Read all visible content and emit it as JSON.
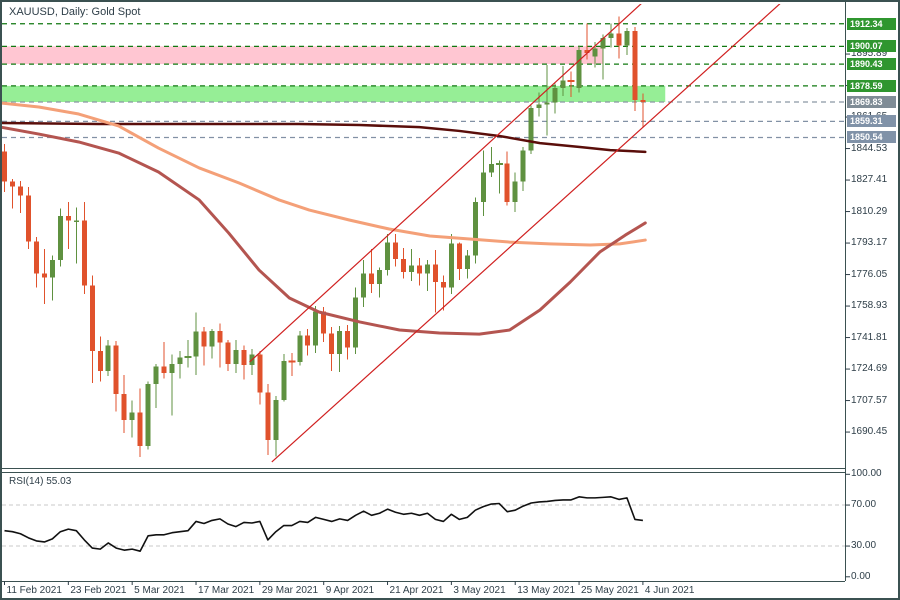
{
  "window": {
    "symbol_label": "XAUUSD, Daily:  Gold Spot"
  },
  "colors": {
    "bull": "#5f9140",
    "bear": "#e0522c",
    "ma200": "#5a0e0a",
    "ma100": "#f4a078",
    "ma50": "#b45550",
    "trendline": "#d02020",
    "zone_pink": "#ffc6d2",
    "zone_green": "#96ee96",
    "level_res": "#107810",
    "level_sup": "#8291a5",
    "level_cur": "#8a97a3",
    "badge_res": "#2f962f",
    "badge_sup": "#8092a8",
    "badge_cur": "#7f8c96",
    "rsi_line": "#111111",
    "rsi_grid": "#c9c9c9",
    "axis_text": "#2e3e48",
    "panel_border": "#3b5151",
    "background": "#ffffff"
  },
  "chart_data": {
    "type": "candlestick",
    "symbol": "XAUUSD",
    "timeframe": "Daily",
    "title": "XAUUSD, Daily:  Gold Spot",
    "price_axis_ticks": [
      {
        "label": "1895.89",
        "price": 1895.89
      },
      {
        "label": "1878.77",
        "price": 1878.77
      },
      {
        "label": "1861.65",
        "price": 1861.65
      },
      {
        "label": "1844.53",
        "price": 1844.53
      },
      {
        "label": "1827.41",
        "price": 1827.41
      },
      {
        "label": "1810.29",
        "price": 1810.29
      },
      {
        "label": "1793.17",
        "price": 1793.17
      },
      {
        "label": "1776.05",
        "price": 1776.05
      },
      {
        "label": "1758.93",
        "price": 1758.93
      },
      {
        "label": "1741.81",
        "price": 1741.81
      },
      {
        "label": "1724.69",
        "price": 1724.69
      },
      {
        "label": "1707.57",
        "price": 1707.57
      },
      {
        "label": "1690.45",
        "price": 1690.45
      }
    ],
    "price_badges": [
      {
        "label": "1912.34",
        "price": 1912.34,
        "type": "res"
      },
      {
        "label": "1900.07",
        "price": 1900.07,
        "type": "res"
      },
      {
        "label": "1890.43",
        "price": 1890.43,
        "type": "res"
      },
      {
        "label": "1878.59",
        "price": 1878.59,
        "type": "res"
      },
      {
        "label": "1869.83",
        "price": 1869.83,
        "type": "cur"
      },
      {
        "label": "1859.31",
        "price": 1859.31,
        "type": "sup"
      },
      {
        "label": "1850.54",
        "price": 1850.54,
        "type": "sup"
      }
    ],
    "levels": [
      {
        "price": 1912.34,
        "style": "res"
      },
      {
        "price": 1900.07,
        "style": "res"
      },
      {
        "price": 1890.43,
        "style": "res"
      },
      {
        "price": 1878.59,
        "style": "res"
      },
      {
        "price": 1869.83,
        "style": "cur"
      },
      {
        "price": 1859.31,
        "style": "sup"
      },
      {
        "price": 1850.54,
        "style": "sup"
      }
    ],
    "zones": [
      {
        "price_from": 1890.43,
        "price_to": 1900.07,
        "i_from": -0.6,
        "i_to": 75.0,
        "color_key": "zone_pink"
      },
      {
        "price_from": 1869.83,
        "price_to": 1878.59,
        "i_from": -0.6,
        "i_to": 82.8,
        "color_key": "zone_green"
      }
    ],
    "date_ticks": [
      {
        "label": "11 Feb 2021",
        "index": 0
      },
      {
        "label": "23 Feb 2021",
        "index": 8
      },
      {
        "label": "5 Mar 2021",
        "index": 16
      },
      {
        "label": "17 Mar 2021",
        "index": 24
      },
      {
        "label": "29 Mar 2021",
        "index": 32
      },
      {
        "label": "9 Apr 2021",
        "index": 40
      },
      {
        "label": "21 Apr 2021",
        "index": 48
      },
      {
        "label": "3 May 2021",
        "index": 56
      },
      {
        "label": "13 May 2021",
        "index": 64
      },
      {
        "label": "25 May 2021",
        "index": 72
      },
      {
        "label": "4 Jun 2021",
        "index": 80
      }
    ],
    "candles": [
      [
        "2021-02-11",
        1843.0,
        1847.0,
        1821.0,
        1826.5
      ],
      [
        "2021-02-12",
        1826.5,
        1828.0,
        1812.0,
        1824.0
      ],
      [
        "2021-02-15",
        1824.0,
        1827.0,
        1809.5,
        1819.0
      ],
      [
        "2021-02-16",
        1819.0,
        1823.5,
        1790.0,
        1794.0
      ],
      [
        "2021-02-17",
        1794.0,
        1796.5,
        1769.0,
        1776.5
      ],
      [
        "2021-02-18",
        1776.5,
        1790.0,
        1760.0,
        1774.5
      ],
      [
        "2021-02-19",
        1774.5,
        1786.5,
        1762.0,
        1784.0
      ],
      [
        "2021-02-22",
        1784.0,
        1812.0,
        1780.5,
        1808.0
      ],
      [
        "2021-02-23",
        1808.0,
        1815.5,
        1790.0,
        1805.5
      ],
      [
        "2021-02-24",
        1804.5,
        1812.5,
        1782.0,
        1805.5
      ],
      [
        "2021-02-25",
        1805.5,
        1815.5,
        1765.5,
        1770.0
      ],
      [
        "2021-02-26",
        1770.0,
        1775.5,
        1717.0,
        1734.5
      ],
      [
        "2021-03-01",
        1734.5,
        1742.5,
        1718.0,
        1723.5
      ],
      [
        "2021-03-02",
        1723.5,
        1740.5,
        1721.0,
        1737.5
      ],
      [
        "2021-03-03",
        1737.5,
        1740.0,
        1701.5,
        1711.0
      ],
      [
        "2021-03-04",
        1711.0,
        1721.5,
        1690.0,
        1697.0
      ],
      [
        "2021-03-05",
        1697.0,
        1707.5,
        1687.5,
        1701.0
      ],
      [
        "2021-03-08",
        1701.0,
        1714.0,
        1676.9,
        1683.0
      ],
      [
        "2021-03-09",
        1683.0,
        1718.0,
        1681.0,
        1716.5
      ],
      [
        "2021-03-10",
        1716.5,
        1727.5,
        1703.5,
        1726.0
      ],
      [
        "2021-03-11",
        1726.0,
        1739.5,
        1719.5,
        1722.5
      ],
      [
        "2021-03-12",
        1722.5,
        1732.5,
        1699.5,
        1727.5
      ],
      [
        "2021-03-15",
        1727.5,
        1734.5,
        1719.5,
        1731.0
      ],
      [
        "2021-03-16",
        1731.0,
        1740.5,
        1725.5,
        1731.5
      ],
      [
        "2021-03-17",
        1731.5,
        1755.5,
        1721.5,
        1745.0
      ],
      [
        "2021-03-18",
        1745.0,
        1747.5,
        1726.5,
        1737.0
      ],
      [
        "2021-03-19",
        1737.0,
        1746.5,
        1730.5,
        1745.5
      ],
      [
        "2021-03-22",
        1745.5,
        1749.5,
        1725.5,
        1739.0
      ],
      [
        "2021-03-23",
        1739.0,
        1740.5,
        1723.5,
        1727.5
      ],
      [
        "2021-03-24",
        1727.5,
        1740.5,
        1722.5,
        1735.0
      ],
      [
        "2021-03-25",
        1735.0,
        1737.5,
        1719.0,
        1727.0
      ],
      [
        "2021-03-26",
        1727.0,
        1735.5,
        1721.5,
        1732.5
      ],
      [
        "2021-03-29",
        1732.5,
        1734.5,
        1705.5,
        1712.0
      ],
      [
        "2021-03-30",
        1712.0,
        1716.5,
        1678.0,
        1686.0
      ],
      [
        "2021-03-31",
        1686.0,
        1710.0,
        1677.1,
        1708.0
      ],
      [
        "2021-04-01",
        1708.0,
        1733.0,
        1707.0,
        1729.0
      ],
      [
        "2021-04-05",
        1729.0,
        1733.5,
        1721.0,
        1728.5
      ],
      [
        "2021-04-06",
        1728.5,
        1745.5,
        1726.5,
        1743.0
      ],
      [
        "2021-04-07",
        1743.0,
        1746.5,
        1732.0,
        1737.5
      ],
      [
        "2021-04-08",
        1737.5,
        1759.0,
        1733.5,
        1756.0
      ],
      [
        "2021-04-09",
        1756.0,
        1758.5,
        1739.5,
        1744.0
      ],
      [
        "2021-04-12",
        1744.0,
        1747.5,
        1723.5,
        1733.0
      ],
      [
        "2021-04-13",
        1733.0,
        1748.0,
        1723.0,
        1745.5
      ],
      [
        "2021-04-14",
        1745.5,
        1748.5,
        1730.0,
        1736.5
      ],
      [
        "2021-04-15",
        1736.5,
        1769.0,
        1733.0,
        1763.5
      ],
      [
        "2021-04-16",
        1763.5,
        1784.0,
        1758.5,
        1776.5
      ],
      [
        "2021-04-19",
        1776.5,
        1790.0,
        1766.0,
        1771.0
      ],
      [
        "2021-04-20",
        1771.0,
        1780.0,
        1763.5,
        1778.5
      ],
      [
        "2021-04-21",
        1778.5,
        1798.0,
        1775.5,
        1793.5
      ],
      [
        "2021-04-22",
        1793.5,
        1798.0,
        1780.5,
        1784.5
      ],
      [
        "2021-04-23",
        1784.5,
        1790.5,
        1774.0,
        1777.5
      ],
      [
        "2021-04-26",
        1777.5,
        1790.0,
        1772.5,
        1781.0
      ],
      [
        "2021-04-27",
        1781.0,
        1785.0,
        1770.0,
        1776.5
      ],
      [
        "2021-04-28",
        1776.5,
        1784.0,
        1767.0,
        1781.5
      ],
      [
        "2021-04-29",
        1781.5,
        1789.5,
        1755.5,
        1772.0
      ],
      [
        "2021-04-30",
        1772.0,
        1775.5,
        1756.5,
        1769.0
      ],
      [
        "2021-05-03",
        1769.0,
        1798.0,
        1765.5,
        1793.0
      ],
      [
        "2021-05-04",
        1793.0,
        1793.5,
        1773.0,
        1779.0
      ],
      [
        "2021-05-05",
        1779.0,
        1789.5,
        1774.0,
        1786.5
      ],
      [
        "2021-05-06",
        1786.5,
        1818.0,
        1782.0,
        1815.5
      ],
      [
        "2021-05-07",
        1815.5,
        1843.5,
        1808.0,
        1831.5
      ],
      [
        "2021-05-10",
        1831.5,
        1845.5,
        1829.0,
        1836.0
      ],
      [
        "2021-05-11",
        1836.0,
        1838.0,
        1820.0,
        1836.5
      ],
      [
        "2021-05-12",
        1836.5,
        1843.0,
        1813.5,
        1815.5
      ],
      [
        "2021-05-13",
        1815.5,
        1831.5,
        1810.0,
        1826.5
      ],
      [
        "2021-05-14",
        1826.5,
        1845.5,
        1821.5,
        1843.5
      ],
      [
        "2021-05-17",
        1843.5,
        1868.0,
        1841.5,
        1866.5
      ],
      [
        "2021-05-18",
        1866.5,
        1875.0,
        1862.0,
        1868.5
      ],
      [
        "2021-05-19",
        1868.5,
        1890.0,
        1851.5,
        1869.5
      ],
      [
        "2021-05-20",
        1869.5,
        1880.0,
        1863.5,
        1877.5
      ],
      [
        "2021-05-21",
        1877.5,
        1889.5,
        1873.0,
        1881.5
      ],
      [
        "2021-05-24",
        1881.5,
        1886.5,
        1872.5,
        1881.0
      ],
      [
        "2021-05-25",
        1877.5,
        1900.5,
        1875.0,
        1898.0
      ],
      [
        "2021-05-26",
        1898.0,
        1912.5,
        1893.0,
        1896.5
      ],
      [
        "2021-05-27",
        1894.5,
        1902.5,
        1888.5,
        1899.0
      ],
      [
        "2021-05-28",
        1899.0,
        1906.5,
        1882.0,
        1904.5
      ],
      [
        "2021-05-31",
        1904.5,
        1912.6,
        1899.5,
        1907.0
      ],
      [
        "2021-06-01",
        1907.0,
        1916.4,
        1893.5,
        1900.5
      ],
      [
        "2021-06-02",
        1900.5,
        1910.0,
        1895.5,
        1908.5
      ],
      [
        "2021-06-03",
        1908.5,
        1910.5,
        1865.0,
        1871.0
      ],
      [
        "2021-06-04",
        1871.0,
        1874.5,
        1856.0,
        1869.83
      ]
    ],
    "moving_averages": [
      {
        "name": "MA200",
        "color_key": "ma200",
        "width": 2.5,
        "points": [
          [
            -0.5,
            1858.4
          ],
          [
            11.8,
            1857.9
          ],
          [
            24.4,
            1857.9
          ],
          [
            36.9,
            1857.9
          ],
          [
            44.5,
            1857.3
          ],
          [
            52,
            1856.2
          ],
          [
            57,
            1854.1
          ],
          [
            62.1,
            1851.3
          ],
          [
            67.1,
            1847.5
          ],
          [
            72.1,
            1845.4
          ],
          [
            75.9,
            1843.7
          ],
          [
            80.3,
            1842.7
          ]
        ]
      },
      {
        "name": "MA100",
        "color_key": "ma100",
        "width": 3,
        "points": [
          [
            -0.5,
            1869.3
          ],
          [
            4.3,
            1867.1
          ],
          [
            9.3,
            1863.3
          ],
          [
            14.3,
            1856.8
          ],
          [
            19.3,
            1844.8
          ],
          [
            24.4,
            1834.0
          ],
          [
            29.4,
            1825.8
          ],
          [
            34.4,
            1816.6
          ],
          [
            38.2,
            1811.1
          ],
          [
            43.2,
            1805.7
          ],
          [
            48.2,
            1800.8
          ],
          [
            53.3,
            1797.0
          ],
          [
            58.3,
            1795.4
          ],
          [
            63.3,
            1793.7
          ],
          [
            68.3,
            1792.7
          ],
          [
            73.4,
            1792.1
          ],
          [
            77.1,
            1792.7
          ],
          [
            80.3,
            1794.8
          ]
        ]
      },
      {
        "name": "MA50",
        "color_key": "ma50",
        "width": 3,
        "points": [
          [
            -0.5,
            1856.2
          ],
          [
            4.3,
            1852.4
          ],
          [
            9.3,
            1848.1
          ],
          [
            14.3,
            1842.1
          ],
          [
            19.3,
            1831.8
          ],
          [
            24.4,
            1816.6
          ],
          [
            28.1,
            1798.6
          ],
          [
            31.9,
            1778.5
          ],
          [
            35.7,
            1763.3
          ],
          [
            39.4,
            1755.7
          ],
          [
            44.5,
            1750.3
          ],
          [
            49.5,
            1745.9
          ],
          [
            54.5,
            1744.3
          ],
          [
            59.5,
            1743.7
          ],
          [
            63.3,
            1745.9
          ],
          [
            67.1,
            1756.8
          ],
          [
            70.9,
            1772.0
          ],
          [
            74.6,
            1788.3
          ],
          [
            77.8,
            1797.5
          ],
          [
            80.3,
            1804.1
          ]
        ]
      }
    ],
    "trendlines": [
      {
        "i1": 30.7,
        "p1": 1728.5,
        "i2": 80.3,
        "p2": 1925.3
      },
      {
        "i1": 33.5,
        "p1": 1674.2,
        "i2": 97.7,
        "p2": 1925.3
      }
    ],
    "rsi": {
      "label": "RSI(14) 55.03",
      "period": 14,
      "current": 55.03,
      "overbought": 70,
      "oversold": 30,
      "axis_ticks": [
        {
          "label": "100.00",
          "value": 100
        },
        {
          "label": "70.00",
          "value": 70
        },
        {
          "label": "30.00",
          "value": 30
        },
        {
          "label": "0.00",
          "value": 0
        }
      ],
      "values": [
        45,
        44,
        42,
        38,
        35,
        34,
        37,
        44,
        46.5,
        45,
        36,
        28,
        27,
        33,
        28,
        26,
        27,
        25,
        40,
        41,
        41,
        43,
        44,
        45,
        54,
        52,
        55,
        56.5,
        51.5,
        49,
        53,
        52.5,
        54,
        36,
        44,
        50,
        50,
        54,
        53,
        58,
        56,
        54,
        56.5,
        55,
        60,
        64,
        60,
        62,
        66,
        63,
        61,
        62,
        60,
        62,
        56,
        54,
        61,
        56,
        58,
        65,
        68.5,
        71,
        71.5,
        63.5,
        65,
        69,
        72,
        73,
        73.5,
        74.5,
        75,
        75,
        78,
        77,
        77,
        77.5,
        78,
        75.5,
        77,
        56,
        55.03
      ]
    }
  }
}
